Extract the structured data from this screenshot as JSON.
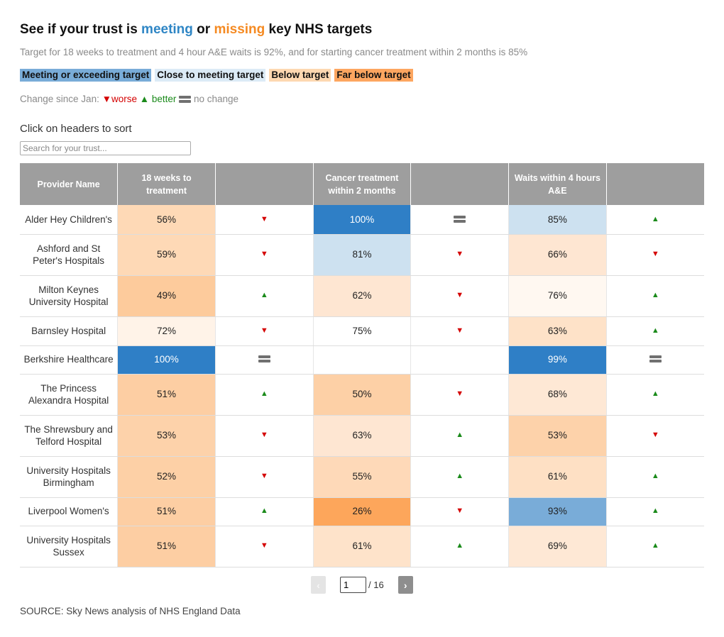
{
  "title": {
    "pre": "See if your trust is ",
    "meeting": "meeting",
    "mid": " or ",
    "missing": "missing",
    "post": " key NHS targets"
  },
  "subtitle": "Target for 18 weeks to treatment and 4 hour A&E waits is 92%, and for starting cancer treatment within 2 months is 85%",
  "legend": [
    "Meeting or exceeding target",
    "Close to meeting target",
    "Below target",
    "Far below target"
  ],
  "change_legend": {
    "label": "Change since Jan:",
    "worse": "worse",
    "better": "better",
    "no_change": "no change",
    "worse_glyph": "▼",
    "better_glyph": "▲"
  },
  "sort_note": "Click on headers to sort",
  "search": {
    "placeholder": "Search for your trust..."
  },
  "columns": [
    "Provider Name",
    "18 weeks to treatment",
    "",
    "Cancer treatment within 2 months",
    "",
    "Waits within 4 hours A&E",
    ""
  ],
  "colors": {
    "meeting": "#2f86c5",
    "missing": "#f58a22",
    "dark_blue": "#2f7fc6",
    "mid_blue": "#79acd8",
    "light_blue": "#cde1f0",
    "faint_peach": "#fff5ec",
    "light_peach": "#fee6d2",
    "peach": "#fdd6b3",
    "orange": "#fda65b"
  },
  "rows": [
    {
      "name": "Alder Hey Children's",
      "rtt": "56%",
      "rtt_bg": "#fed9b6",
      "rtt_chg": "down",
      "cancer": "100%",
      "cancer_bg": "#2f7fc6",
      "cancer_dark": true,
      "cancer_chg": "same",
      "ae": "85%",
      "ae_bg": "#cde1f0",
      "ae_chg": "up"
    },
    {
      "name": "Ashford and St Peter's Hospitals",
      "rtt": "59%",
      "rtt_bg": "#fed9b6",
      "rtt_chg": "down",
      "cancer": "81%",
      "cancer_bg": "#cde1f0",
      "cancer_chg": "down",
      "ae": "66%",
      "ae_bg": "#fee6d2",
      "ae_chg": "down"
    },
    {
      "name": "Milton Keynes University Hospital",
      "rtt": "49%",
      "rtt_bg": "#fdcb9c",
      "rtt_chg": "up",
      "cancer": "62%",
      "cancer_bg": "#fee6d2",
      "cancer_chg": "down",
      "ae": "76%",
      "ae_bg": "#fff8f1",
      "ae_chg": "up"
    },
    {
      "name": "Barnsley Hospital",
      "rtt": "72%",
      "rtt_bg": "#fff3e8",
      "rtt_chg": "down",
      "cancer": "75%",
      "cancer_bg": "#ffffff",
      "cancer_chg": "down",
      "ae": "63%",
      "ae_bg": "#fee2c8",
      "ae_chg": "up"
    },
    {
      "name": "Berkshire Healthcare",
      "rtt": "100%",
      "rtt_bg": "#2f7fc6",
      "rtt_dark": true,
      "rtt_chg": "same",
      "cancer": "",
      "cancer_bg": "#ffffff",
      "cancer_chg": "none",
      "ae": "99%",
      "ae_bg": "#2f7fc6",
      "ae_dark": true,
      "ae_chg": "same"
    },
    {
      "name": "The Princess Alexandra Hospital",
      "rtt": "51%",
      "rtt_bg": "#fdcea3",
      "rtt_chg": "up",
      "cancer": "50%",
      "cancer_bg": "#fdd0a6",
      "cancer_chg": "down",
      "ae": "68%",
      "ae_bg": "#fee8d5",
      "ae_chg": "up"
    },
    {
      "name": "The Shrewsbury and Telford Hospital",
      "rtt": "53%",
      "rtt_bg": "#fdd2aa",
      "rtt_chg": "down",
      "cancer": "63%",
      "cancer_bg": "#fee6d2",
      "cancer_chg": "up",
      "ae": "53%",
      "ae_bg": "#fdd2aa",
      "ae_chg": "down"
    },
    {
      "name": "University Hospitals Birmingham",
      "rtt": "52%",
      "rtt_bg": "#fdd0a6",
      "rtt_chg": "down",
      "cancer": "55%",
      "cancer_bg": "#fed9b8",
      "cancer_chg": "up",
      "ae": "61%",
      "ae_bg": "#fee0c4",
      "ae_chg": "up"
    },
    {
      "name": "Liverpool Women's",
      "rtt": "51%",
      "rtt_bg": "#fdcea3",
      "rtt_chg": "up",
      "cancer": "26%",
      "cancer_bg": "#fda65b",
      "cancer_chg": "down",
      "ae": "93%",
      "ae_bg": "#79acd8",
      "ae_chg": "up"
    },
    {
      "name": "University Hospitals Sussex",
      "rtt": "51%",
      "rtt_bg": "#fdcea3",
      "rtt_chg": "down",
      "cancer": "61%",
      "cancer_bg": "#fee3ca",
      "cancer_chg": "up",
      "ae": "69%",
      "ae_bg": "#fee8d5",
      "ae_chg": "up"
    }
  ],
  "pagination": {
    "prev": "‹",
    "next": "›",
    "current": "1",
    "total": "/ 16"
  },
  "source": "SOURCE: Sky News analysis of NHS England Data"
}
